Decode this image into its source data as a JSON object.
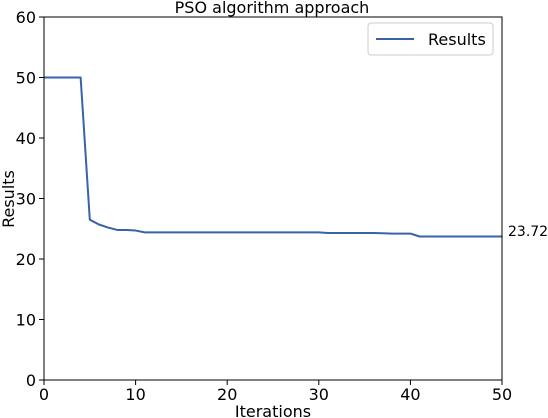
{
  "chart_data": {
    "type": "line",
    "title": "PSO algorithm approach",
    "xlabel": "Iterations",
    "ylabel": "Results",
    "xlim": [
      0,
      50
    ],
    "ylim": [
      0,
      60
    ],
    "xticks": [
      0,
      10,
      20,
      30,
      40,
      50
    ],
    "yticks": [
      0,
      10,
      20,
      30,
      40,
      50,
      60
    ],
    "grid": false,
    "legend_position": "top-right",
    "series": [
      {
        "name": "Results",
        "color": "#3a62a8",
        "x": [
          0,
          1,
          2,
          3,
          4,
          5,
          6,
          7,
          8,
          9,
          10,
          11,
          12,
          13,
          14,
          15,
          16,
          17,
          18,
          19,
          20,
          21,
          22,
          23,
          24,
          25,
          26,
          27,
          28,
          29,
          30,
          31,
          32,
          33,
          34,
          35,
          36,
          37,
          38,
          39,
          40,
          41,
          42,
          43,
          44,
          45,
          46,
          47,
          48,
          49,
          50
        ],
        "y": [
          50.0,
          50.0,
          50.0,
          50.0,
          50.0,
          26.5,
          25.7,
          25.2,
          24.8,
          24.8,
          24.7,
          24.4,
          24.4,
          24.4,
          24.4,
          24.4,
          24.4,
          24.4,
          24.4,
          24.4,
          24.4,
          24.4,
          24.4,
          24.4,
          24.4,
          24.4,
          24.4,
          24.4,
          24.4,
          24.4,
          24.4,
          24.3,
          24.3,
          24.3,
          24.3,
          24.3,
          24.3,
          24.25,
          24.2,
          24.2,
          24.2,
          23.72,
          23.72,
          23.72,
          23.72,
          23.72,
          23.72,
          23.72,
          23.72,
          23.72,
          23.72
        ]
      }
    ],
    "end_annotation": "23.72"
  }
}
